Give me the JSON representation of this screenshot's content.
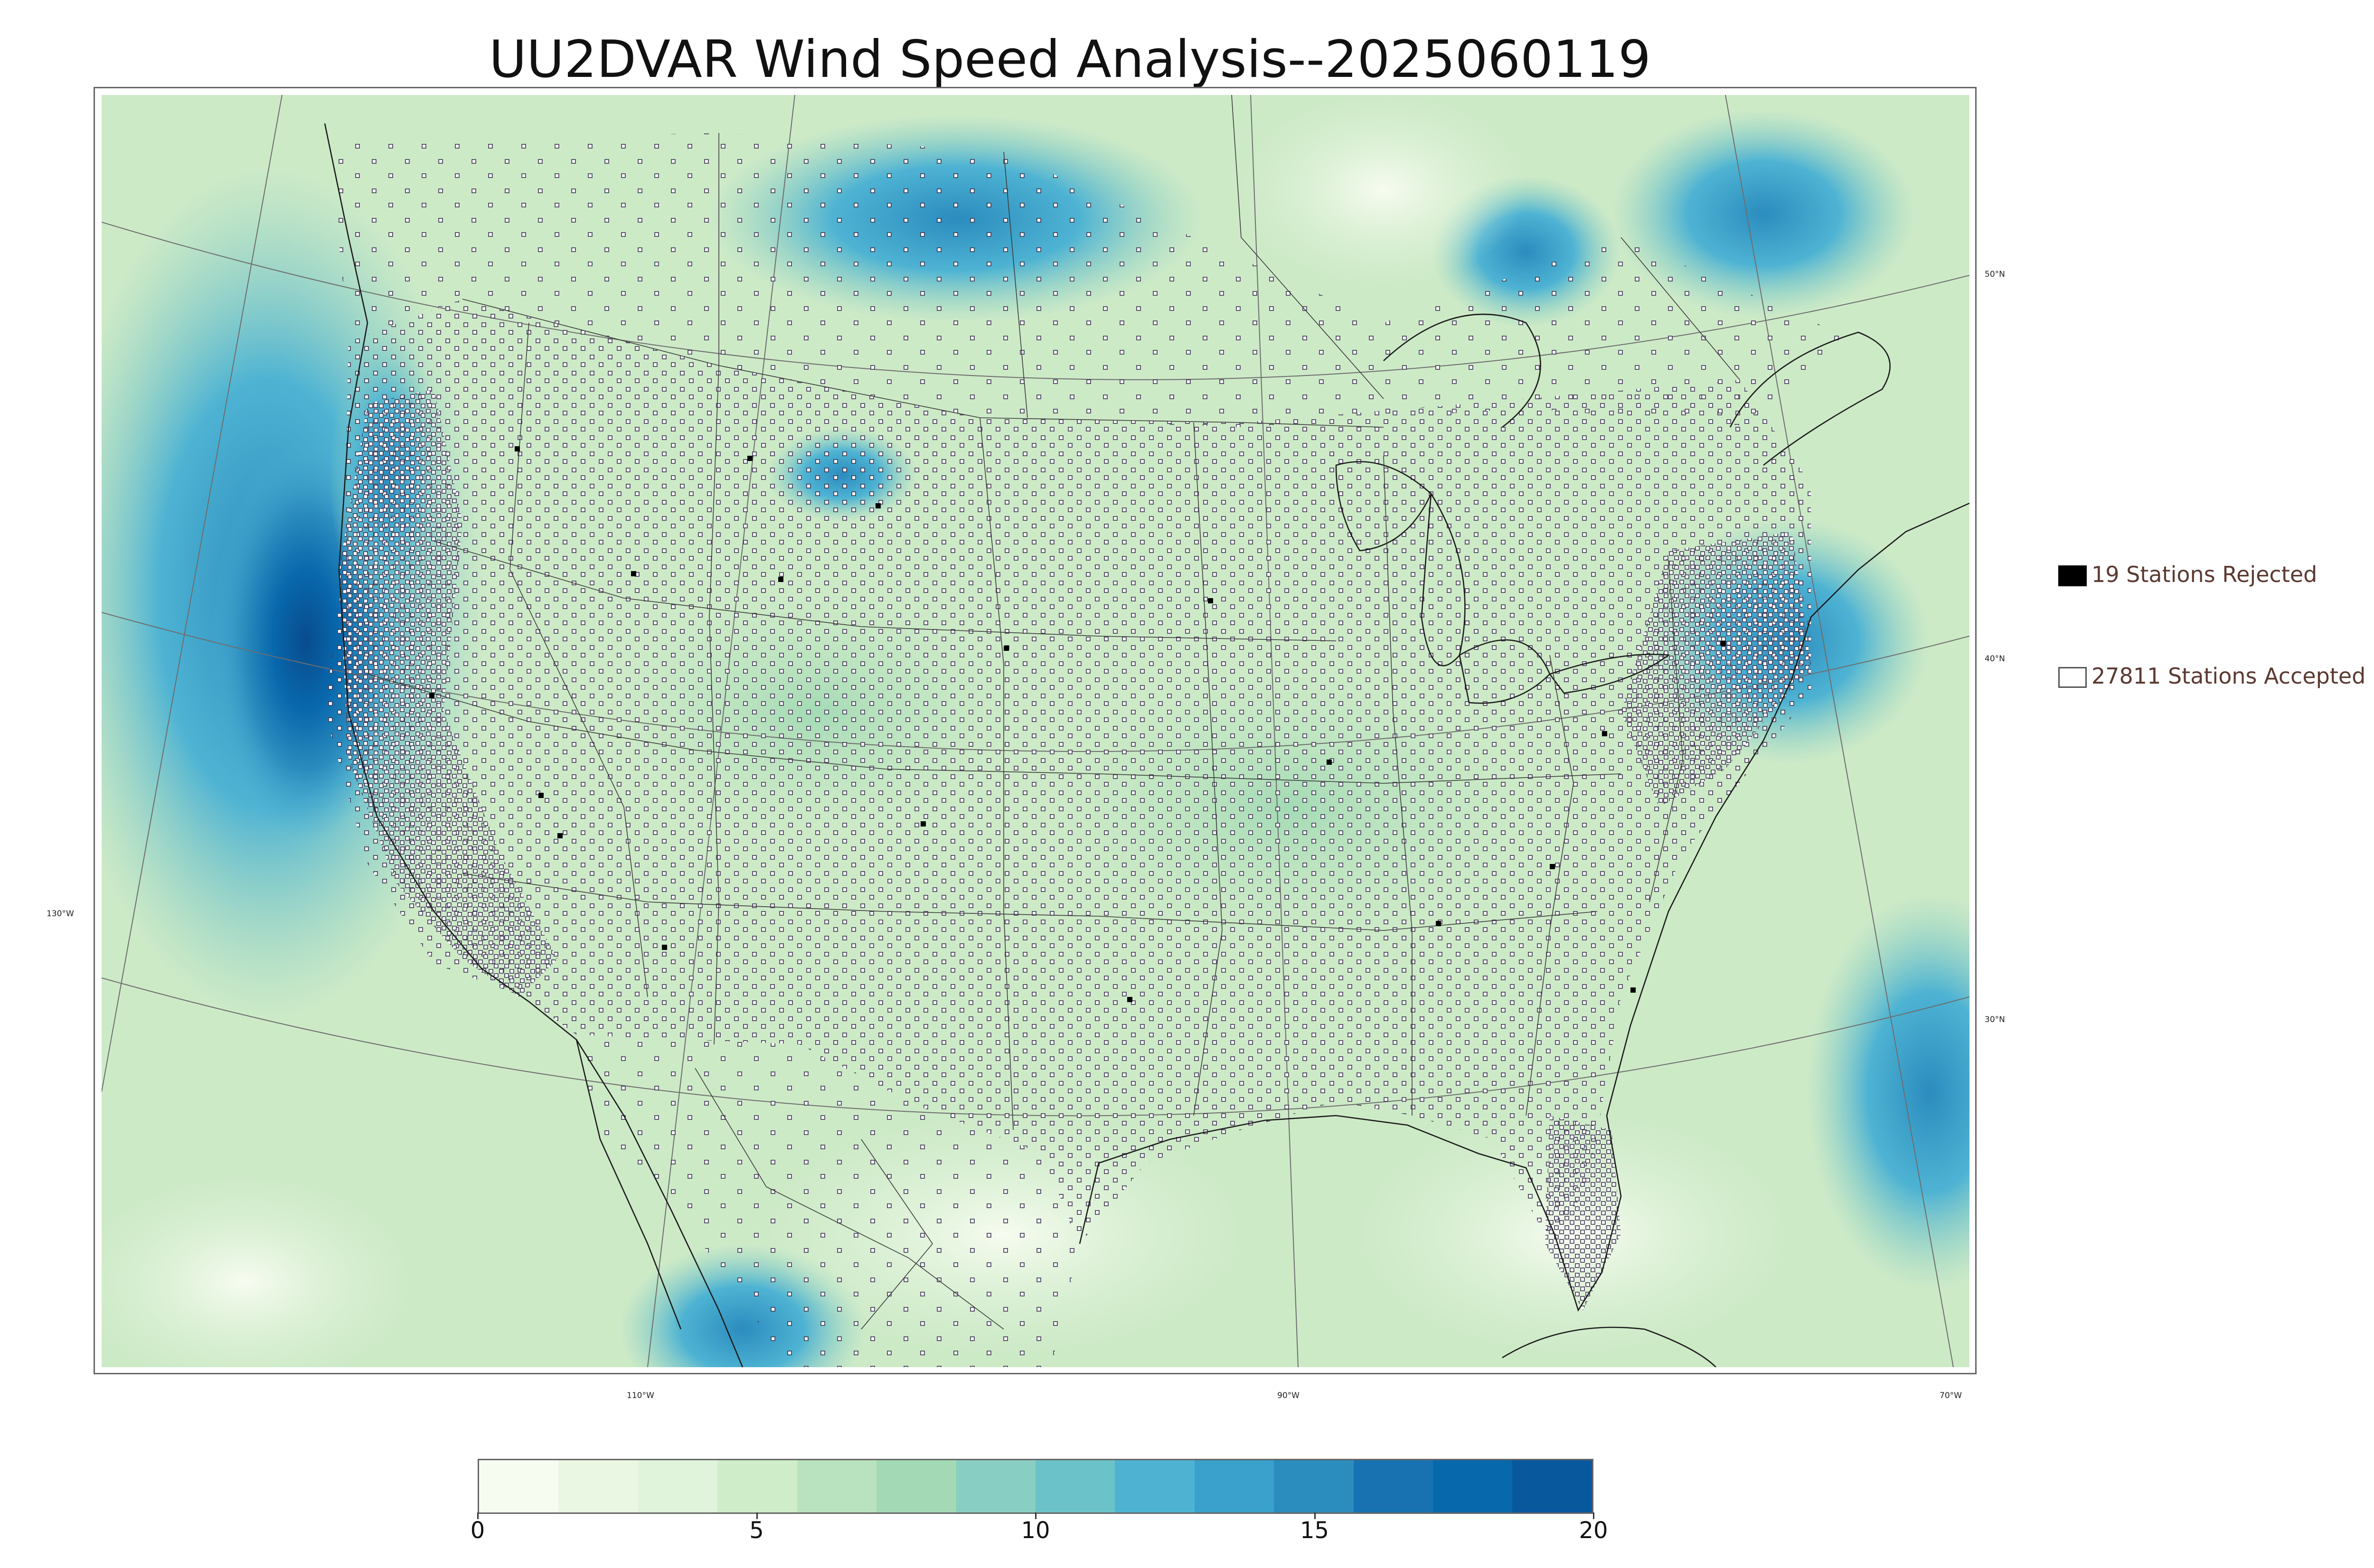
{
  "title": "UU2DVAR Wind Speed Analysis--2025060119",
  "legend": {
    "rejected_label": "19 Stations Rejected",
    "accepted_label": "27811 Stations Accepted"
  },
  "graticule": {
    "lat_labels": [
      "50°N",
      "40°N",
      "30°N"
    ],
    "lon_labels": [
      "130°W",
      "110°W",
      "90°W",
      "70°W"
    ]
  },
  "colorbar": {
    "min": 0,
    "max": 20,
    "tick_labels": [
      "0",
      "5",
      "10",
      "15",
      "20"
    ],
    "colors": [
      "#f7fcf0",
      "#eaf7e3",
      "#e0f3db",
      "#d0edca",
      "#b8e3be",
      "#a3dab5",
      "#88cec2",
      "#6bc3c9",
      "#4eb3d3",
      "#3aa1cd",
      "#2b8cbe",
      "#1872b1",
      "#0868ac",
      "#08589e"
    ]
  },
  "stations": {
    "rejected_count": 19,
    "accepted_count": 27811,
    "rejected_color": "#000000",
    "accepted_color": "#ffffff"
  }
}
